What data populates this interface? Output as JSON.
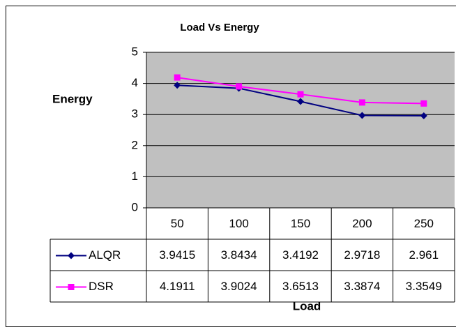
{
  "chart_data": {
    "type": "line",
    "title": "Load Vs Energy",
    "y_label": "Energy",
    "x_label": "Load",
    "categories": [
      "50",
      "100",
      "150",
      "200",
      "250"
    ],
    "series": [
      {
        "name": "ALQR",
        "color": "#000080",
        "marker": "diamond",
        "values": [
          3.9415,
          3.8434,
          3.4192,
          2.9718,
          2.961
        ]
      },
      {
        "name": "DSR",
        "color": "#ff00ff",
        "marker": "square",
        "values": [
          4.1911,
          3.9024,
          3.6513,
          3.3874,
          3.3549
        ]
      }
    ],
    "ylim": [
      0,
      5
    ],
    "yticks": [
      0,
      1,
      2,
      3,
      4,
      5
    ],
    "grid": true,
    "plot_background": "#c0c0c0"
  }
}
